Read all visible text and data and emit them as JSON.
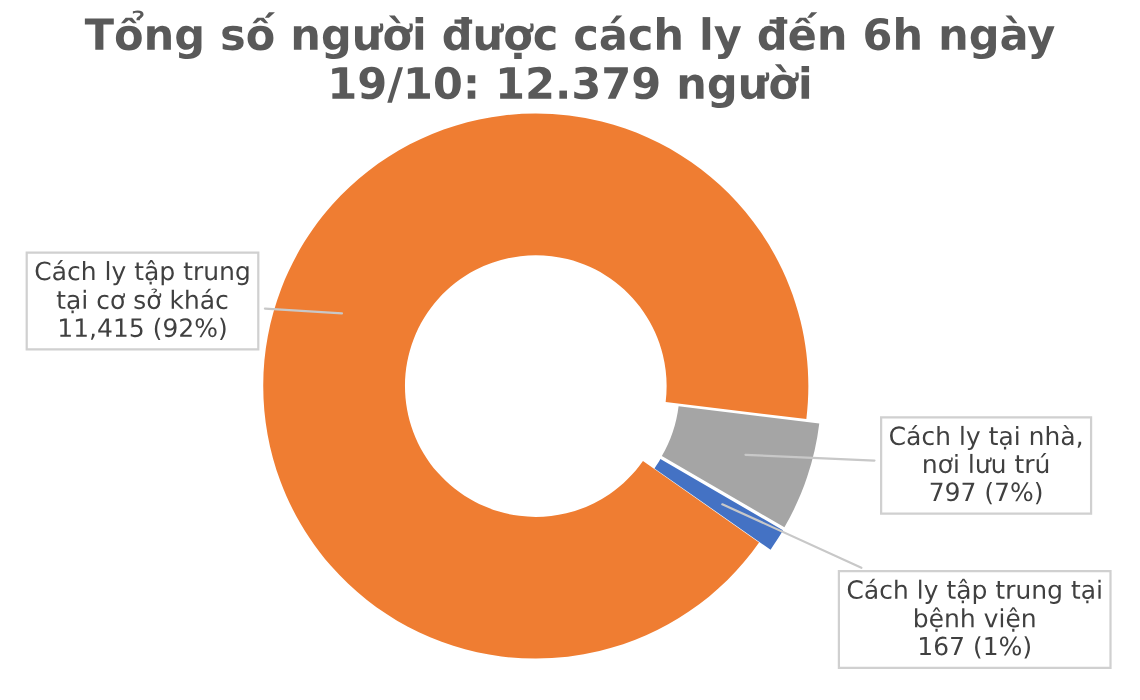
{
  "chart_data": {
    "type": "donut",
    "title": "Tổng số người được cách ly đến 6h ngày\n19/10: 12.379 người",
    "categories": [
      "Cách ly tập trung\ntại cơ sở khác",
      "Cách ly tại nhà,\nnơi lưu trú",
      "Cách ly tập trung tại\nbệnh viện"
    ],
    "values": [
      11415,
      797,
      167
    ],
    "value_labels": [
      "11,415 (92%)",
      "797 (7%)",
      "167 (1%)"
    ],
    "colors": [
      "#ef7d32",
      "#a5a5a5",
      "#4472c4"
    ],
    "legend": false
  }
}
